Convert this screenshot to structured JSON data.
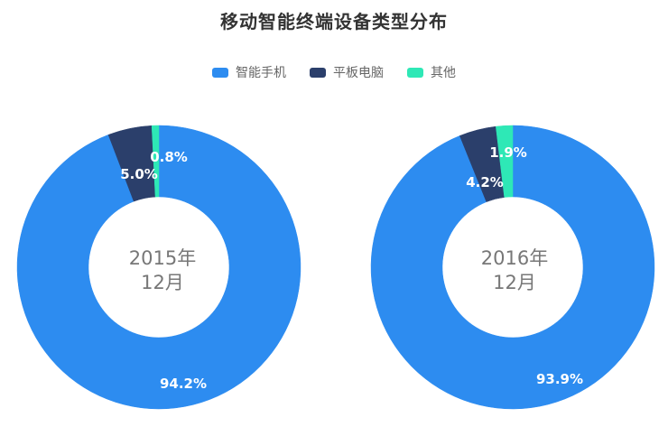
{
  "title": "移动智能终端设备类型分布",
  "legend": [
    {
      "label": "智能手机",
      "color": "#2d8cf0"
    },
    {
      "label": "平板电脑",
      "color": "#2b3f6b"
    },
    {
      "label": "其他",
      "color": "#2ee8b6"
    }
  ],
  "charts": [
    {
      "center_line1": "2015年",
      "center_line2": "12月",
      "labels": {
        "phone": "94.2%",
        "tablet": "5.0%",
        "other": "0.8%"
      }
    },
    {
      "center_line1": "2016年",
      "center_line2": "12月",
      "labels": {
        "phone": "93.9%",
        "tablet": "4.2%",
        "other": "1.9%"
      }
    }
  ],
  "chart_data": [
    {
      "type": "pie",
      "variant": "donut",
      "title": "移动智能终端设备类型分布",
      "center_label": "2015年12月",
      "categories": [
        "智能手机",
        "平板电脑",
        "其他"
      ],
      "values": [
        94.2,
        5.0,
        0.8
      ],
      "unit": "%",
      "colors": [
        "#2d8cf0",
        "#2b3f6b",
        "#2ee8b6"
      ],
      "legend_position": "top"
    },
    {
      "type": "pie",
      "variant": "donut",
      "title": "移动智能终端设备类型分布",
      "center_label": "2016年12月",
      "categories": [
        "智能手机",
        "平板电脑",
        "其他"
      ],
      "values": [
        93.9,
        4.2,
        1.9
      ],
      "unit": "%",
      "colors": [
        "#2d8cf0",
        "#2b3f6b",
        "#2ee8b6"
      ],
      "legend_position": "top"
    }
  ]
}
